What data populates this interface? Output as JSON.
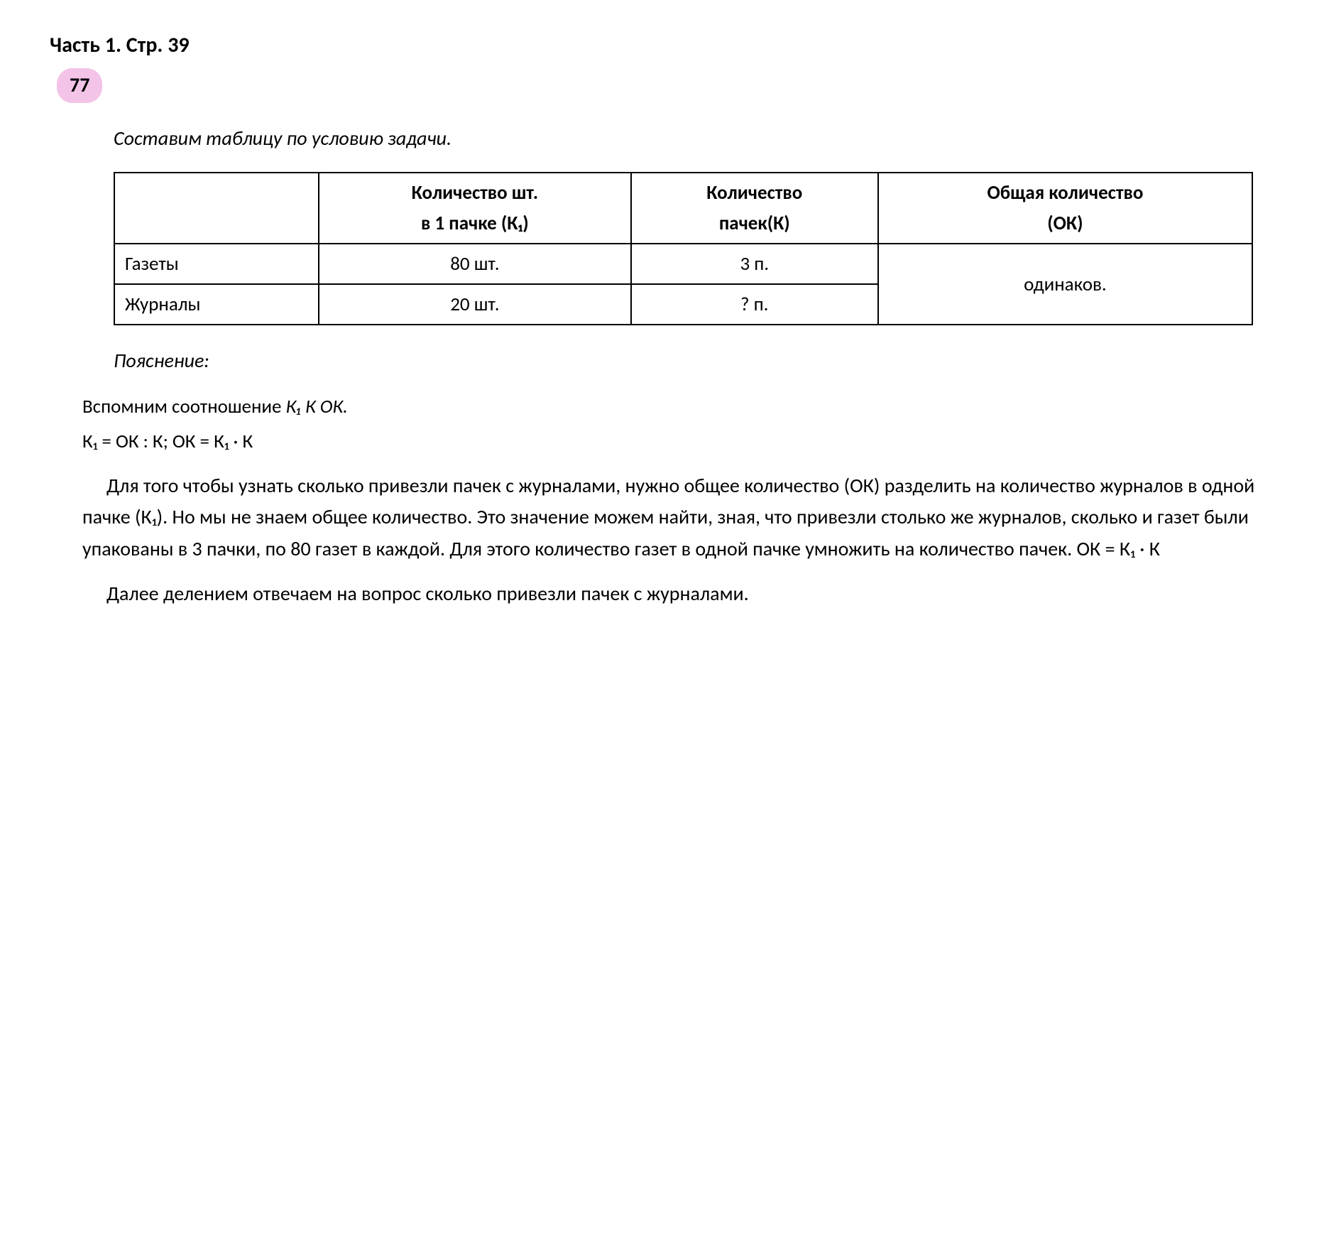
{
  "header": "Часть 1. Стр. 39",
  "badge": "77",
  "intro": "Составим таблицу по условию задачи.",
  "table": {
    "headers": {
      "col1": "",
      "col2_l1": "Количество шт.",
      "col2_l2": "в 1 пачке (К₁)",
      "col3_l1": "Количество",
      "col3_l2": "пачек(К)",
      "col4_l1": "Общая количество",
      "col4_l2": "(ОК)"
    },
    "rows": [
      {
        "name": "Газеты",
        "per_pack": "80 шт.",
        "packs": "3 п."
      },
      {
        "name": "Журналы",
        "per_pack": "20 шт.",
        "packs": "? п."
      }
    ],
    "total": "одинаков."
  },
  "explain_title": "Пояснение:",
  "formula_line1_a": "Вспомним соотношение   ",
  "formula_line1_b": "К₁   К   ОК.",
  "formula_line2": "К₁ = ОК : К;   ОК = К₁ · К",
  "para1": "Для того чтобы узнать сколько привезли пачек с журналами, нужно общее количество (ОК) разделить на количество журналов в одной пачке (К₁). Но мы не знаем общее количество. Это значение можем найти, зная, что привезли столько же журналов, сколько и газет были упакованы в 3 пачки, по 80 газет в каждой. Для этого количество газет в одной пачке умножить на количество пачек. ОК = К₁ · К",
  "para2": "Далее делением отвечаем на вопрос сколько привезли пачек с журналами."
}
